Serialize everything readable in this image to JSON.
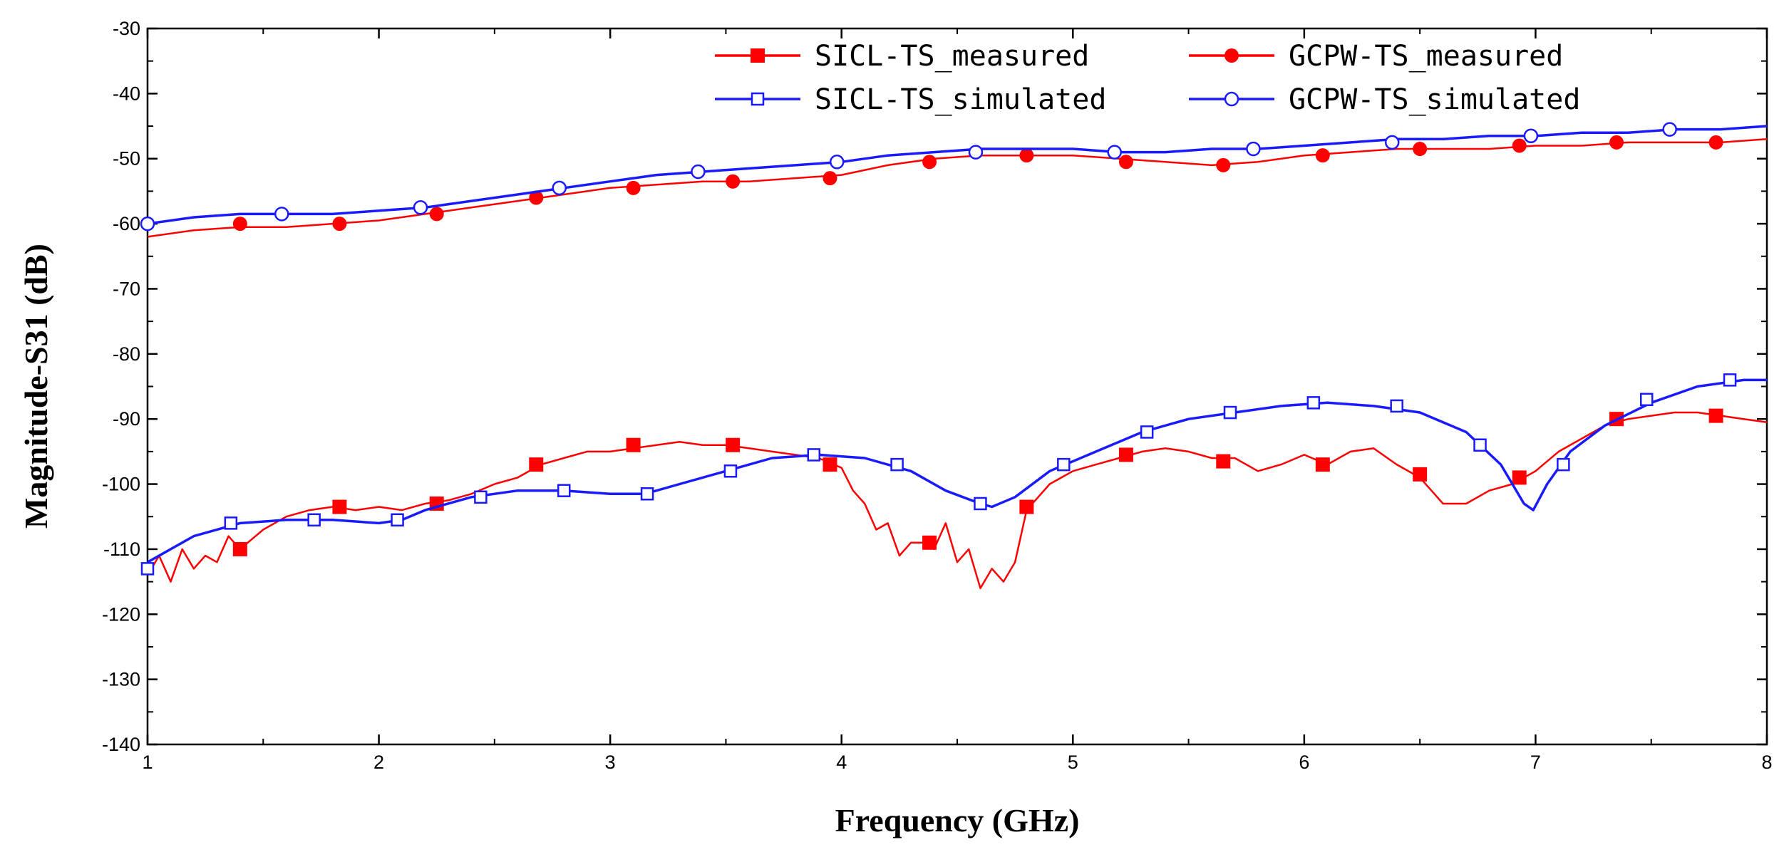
{
  "chart_data": {
    "type": "line",
    "title": "",
    "xlabel": "Frequency (GHz)",
    "ylabel": "Magnitude-S31 (dB)",
    "xlim": [
      1,
      8
    ],
    "ylim": [
      -140,
      -30
    ],
    "xticks": [
      "1",
      "2",
      "3",
      "4",
      "5",
      "6",
      "7",
      "8"
    ],
    "yticks": [
      "-30",
      "-40",
      "-50",
      "-60",
      "-70",
      "-80",
      "-90",
      "-100",
      "-110",
      "-120",
      "-130",
      "-140"
    ],
    "grid": false,
    "legend_position": "top-right",
    "series": [
      {
        "name": "SICL-TS_measured",
        "color": "#ff0000",
        "marker": "filled-square",
        "line": [
          [
            1.0,
            -114
          ],
          [
            1.05,
            -111
          ],
          [
            1.1,
            -115
          ],
          [
            1.15,
            -110
          ],
          [
            1.2,
            -113
          ],
          [
            1.25,
            -111
          ],
          [
            1.3,
            -112
          ],
          [
            1.35,
            -108
          ],
          [
            1.4,
            -110
          ],
          [
            1.5,
            -107
          ],
          [
            1.6,
            -105
          ],
          [
            1.7,
            -104
          ],
          [
            1.8,
            -103.5
          ],
          [
            1.9,
            -104
          ],
          [
            2.0,
            -103.5
          ],
          [
            2.1,
            -104
          ],
          [
            2.2,
            -103
          ],
          [
            2.3,
            -102.5
          ],
          [
            2.4,
            -101.5
          ],
          [
            2.5,
            -100
          ],
          [
            2.6,
            -99
          ],
          [
            2.7,
            -97
          ],
          [
            2.8,
            -96
          ],
          [
            2.9,
            -95
          ],
          [
            3.0,
            -95
          ],
          [
            3.1,
            -94.5
          ],
          [
            3.2,
            -94
          ],
          [
            3.3,
            -93.5
          ],
          [
            3.4,
            -94
          ],
          [
            3.5,
            -94
          ],
          [
            3.6,
            -94.5
          ],
          [
            3.7,
            -95
          ],
          [
            3.8,
            -95.5
          ],
          [
            3.9,
            -96
          ],
          [
            4.0,
            -97.5
          ],
          [
            4.05,
            -101
          ],
          [
            4.1,
            -103
          ],
          [
            4.15,
            -107
          ],
          [
            4.2,
            -106
          ],
          [
            4.25,
            -111
          ],
          [
            4.3,
            -109
          ],
          [
            4.35,
            -109
          ],
          [
            4.4,
            -110
          ],
          [
            4.45,
            -106
          ],
          [
            4.5,
            -112
          ],
          [
            4.55,
            -110
          ],
          [
            4.6,
            -116
          ],
          [
            4.65,
            -113
          ],
          [
            4.7,
            -115
          ],
          [
            4.75,
            -112
          ],
          [
            4.8,
            -104
          ],
          [
            4.85,
            -102
          ],
          [
            4.9,
            -100
          ],
          [
            4.95,
            -99
          ],
          [
            5.0,
            -98
          ],
          [
            5.1,
            -97
          ],
          [
            5.2,
            -96
          ],
          [
            5.3,
            -95
          ],
          [
            5.4,
            -94.5
          ],
          [
            5.5,
            -95
          ],
          [
            5.6,
            -96
          ],
          [
            5.7,
            -96
          ],
          [
            5.8,
            -98
          ],
          [
            5.9,
            -97
          ],
          [
            6.0,
            -95.5
          ],
          [
            6.1,
            -97
          ],
          [
            6.2,
            -95
          ],
          [
            6.3,
            -94.5
          ],
          [
            6.4,
            -97
          ],
          [
            6.5,
            -99
          ],
          [
            6.55,
            -101
          ],
          [
            6.6,
            -103
          ],
          [
            6.7,
            -103
          ],
          [
            6.8,
            -101
          ],
          [
            6.9,
            -100
          ],
          [
            6.95,
            -99
          ],
          [
            7.0,
            -98
          ],
          [
            7.1,
            -95
          ],
          [
            7.2,
            -93
          ],
          [
            7.3,
            -91
          ],
          [
            7.4,
            -90
          ],
          [
            7.5,
            -89.5
          ],
          [
            7.6,
            -89
          ],
          [
            7.7,
            -89
          ],
          [
            7.8,
            -89.5
          ],
          [
            7.9,
            -90
          ],
          [
            8.0,
            -90.5
          ]
        ],
        "markers": [
          [
            1.4,
            -110
          ],
          [
            1.83,
            -103.5
          ],
          [
            2.25,
            -103
          ],
          [
            2.68,
            -97
          ],
          [
            3.1,
            -94
          ],
          [
            3.53,
            -94
          ],
          [
            3.95,
            -97
          ],
          [
            4.38,
            -109
          ],
          [
            4.8,
            -103.5
          ],
          [
            5.23,
            -95.5
          ],
          [
            5.65,
            -96.5
          ],
          [
            6.08,
            -97
          ],
          [
            6.5,
            -98.5
          ],
          [
            6.93,
            -99
          ],
          [
            7.35,
            -90
          ],
          [
            7.78,
            -89.5
          ]
        ]
      },
      {
        "name": "SICL-TS_simulated",
        "color": "#1a1aff",
        "marker": "open-square",
        "line": [
          [
            1.0,
            -112
          ],
          [
            1.2,
            -108
          ],
          [
            1.4,
            -106
          ],
          [
            1.6,
            -105.5
          ],
          [
            1.8,
            -105.5
          ],
          [
            2.0,
            -106
          ],
          [
            2.1,
            -105.5
          ],
          [
            2.2,
            -104
          ],
          [
            2.4,
            -102
          ],
          [
            2.6,
            -101
          ],
          [
            2.8,
            -101
          ],
          [
            3.0,
            -101.5
          ],
          [
            3.15,
            -101.5
          ],
          [
            3.3,
            -100
          ],
          [
            3.5,
            -98
          ],
          [
            3.7,
            -96
          ],
          [
            3.9,
            -95.5
          ],
          [
            4.1,
            -96
          ],
          [
            4.3,
            -98
          ],
          [
            4.45,
            -101
          ],
          [
            4.6,
            -103
          ],
          [
            4.65,
            -103.5
          ],
          [
            4.75,
            -102
          ],
          [
            4.9,
            -98
          ],
          [
            5.1,
            -95
          ],
          [
            5.3,
            -92
          ],
          [
            5.5,
            -90
          ],
          [
            5.7,
            -89
          ],
          [
            5.9,
            -88
          ],
          [
            6.1,
            -87.5
          ],
          [
            6.3,
            -88
          ],
          [
            6.5,
            -89
          ],
          [
            6.7,
            -92
          ],
          [
            6.85,
            -97
          ],
          [
            6.95,
            -103
          ],
          [
            6.99,
            -104
          ],
          [
            7.05,
            -100
          ],
          [
            7.15,
            -95
          ],
          [
            7.3,
            -91
          ],
          [
            7.5,
            -87.5
          ],
          [
            7.7,
            -85
          ],
          [
            7.9,
            -84
          ],
          [
            8.0,
            -84
          ]
        ],
        "markers": [
          [
            1.0,
            -113
          ],
          [
            1.36,
            -106
          ],
          [
            1.72,
            -105.5
          ],
          [
            2.08,
            -105.5
          ],
          [
            2.44,
            -102
          ],
          [
            2.8,
            -101
          ],
          [
            3.16,
            -101.5
          ],
          [
            3.52,
            -98
          ],
          [
            3.88,
            -95.5
          ],
          [
            4.24,
            -97
          ],
          [
            4.6,
            -103
          ],
          [
            4.96,
            -97
          ],
          [
            5.32,
            -92
          ],
          [
            5.68,
            -89
          ],
          [
            6.04,
            -87.5
          ],
          [
            6.4,
            -88
          ],
          [
            6.76,
            -94
          ],
          [
            7.12,
            -97
          ],
          [
            7.48,
            -87
          ],
          [
            7.84,
            -84
          ]
        ]
      },
      {
        "name": "GCPW-TS_measured",
        "color": "#ff0000",
        "marker": "filled-circle",
        "line": [
          [
            1.0,
            -62
          ],
          [
            1.2,
            -61
          ],
          [
            1.4,
            -60.5
          ],
          [
            1.6,
            -60.5
          ],
          [
            1.8,
            -60
          ],
          [
            2.0,
            -59.5
          ],
          [
            2.2,
            -58.5
          ],
          [
            2.4,
            -57.5
          ],
          [
            2.6,
            -56.5
          ],
          [
            2.8,
            -55.5
          ],
          [
            3.0,
            -54.5
          ],
          [
            3.2,
            -54
          ],
          [
            3.4,
            -53.5
          ],
          [
            3.6,
            -53.5
          ],
          [
            3.8,
            -53
          ],
          [
            4.0,
            -52.5
          ],
          [
            4.2,
            -51
          ],
          [
            4.4,
            -50
          ],
          [
            4.6,
            -49.5
          ],
          [
            4.8,
            -49.5
          ],
          [
            5.0,
            -49.5
          ],
          [
            5.2,
            -50
          ],
          [
            5.4,
            -50.5
          ],
          [
            5.6,
            -51
          ],
          [
            5.8,
            -50.5
          ],
          [
            6.0,
            -49.5
          ],
          [
            6.2,
            -49
          ],
          [
            6.4,
            -48.5
          ],
          [
            6.6,
            -48.5
          ],
          [
            6.8,
            -48.5
          ],
          [
            7.0,
            -48
          ],
          [
            7.2,
            -48
          ],
          [
            7.4,
            -47.5
          ],
          [
            7.6,
            -47.5
          ],
          [
            7.8,
            -47.5
          ],
          [
            8.0,
            -47
          ]
        ],
        "markers": [
          [
            1.4,
            -60
          ],
          [
            1.83,
            -60
          ],
          [
            2.25,
            -58.5
          ],
          [
            2.68,
            -56
          ],
          [
            3.1,
            -54.5
          ],
          [
            3.53,
            -53.5
          ],
          [
            3.95,
            -53
          ],
          [
            4.38,
            -50.5
          ],
          [
            4.8,
            -49.5
          ],
          [
            5.23,
            -50.5
          ],
          [
            5.65,
            -51
          ],
          [
            6.08,
            -49.5
          ],
          [
            6.5,
            -48.5
          ],
          [
            6.93,
            -48
          ],
          [
            7.35,
            -47.5
          ],
          [
            7.78,
            -47.5
          ]
        ]
      },
      {
        "name": "GCPW-TS_simulated",
        "color": "#1a1aff",
        "marker": "open-circle",
        "line": [
          [
            1.0,
            -60
          ],
          [
            1.2,
            -59
          ],
          [
            1.4,
            -58.5
          ],
          [
            1.6,
            -58.5
          ],
          [
            1.8,
            -58.5
          ],
          [
            2.0,
            -58
          ],
          [
            2.2,
            -57.5
          ],
          [
            2.4,
            -56.5
          ],
          [
            2.6,
            -55.5
          ],
          [
            2.8,
            -54.5
          ],
          [
            3.0,
            -53.5
          ],
          [
            3.2,
            -52.5
          ],
          [
            3.4,
            -52
          ],
          [
            3.6,
            -51.5
          ],
          [
            3.8,
            -51
          ],
          [
            4.0,
            -50.5
          ],
          [
            4.2,
            -49.5
          ],
          [
            4.4,
            -49
          ],
          [
            4.6,
            -48.5
          ],
          [
            4.8,
            -48.5
          ],
          [
            5.0,
            -48.5
          ],
          [
            5.2,
            -49
          ],
          [
            5.4,
            -49
          ],
          [
            5.6,
            -48.5
          ],
          [
            5.8,
            -48.5
          ],
          [
            6.0,
            -48
          ],
          [
            6.2,
            -47.5
          ],
          [
            6.4,
            -47
          ],
          [
            6.6,
            -47
          ],
          [
            6.8,
            -46.5
          ],
          [
            7.0,
            -46.5
          ],
          [
            7.2,
            -46
          ],
          [
            7.4,
            -46
          ],
          [
            7.6,
            -45.5
          ],
          [
            7.8,
            -45.5
          ],
          [
            8.0,
            -45
          ]
        ],
        "markers": [
          [
            1.0,
            -60
          ],
          [
            1.58,
            -58.5
          ],
          [
            2.18,
            -57.5
          ],
          [
            2.78,
            -54.5
          ],
          [
            3.38,
            -52
          ],
          [
            3.98,
            -50.5
          ],
          [
            4.58,
            -49
          ],
          [
            5.18,
            -49
          ],
          [
            5.78,
            -48.5
          ],
          [
            6.38,
            -47.5
          ],
          [
            6.98,
            -46.5
          ],
          [
            7.58,
            -45.5
          ]
        ]
      }
    ]
  }
}
